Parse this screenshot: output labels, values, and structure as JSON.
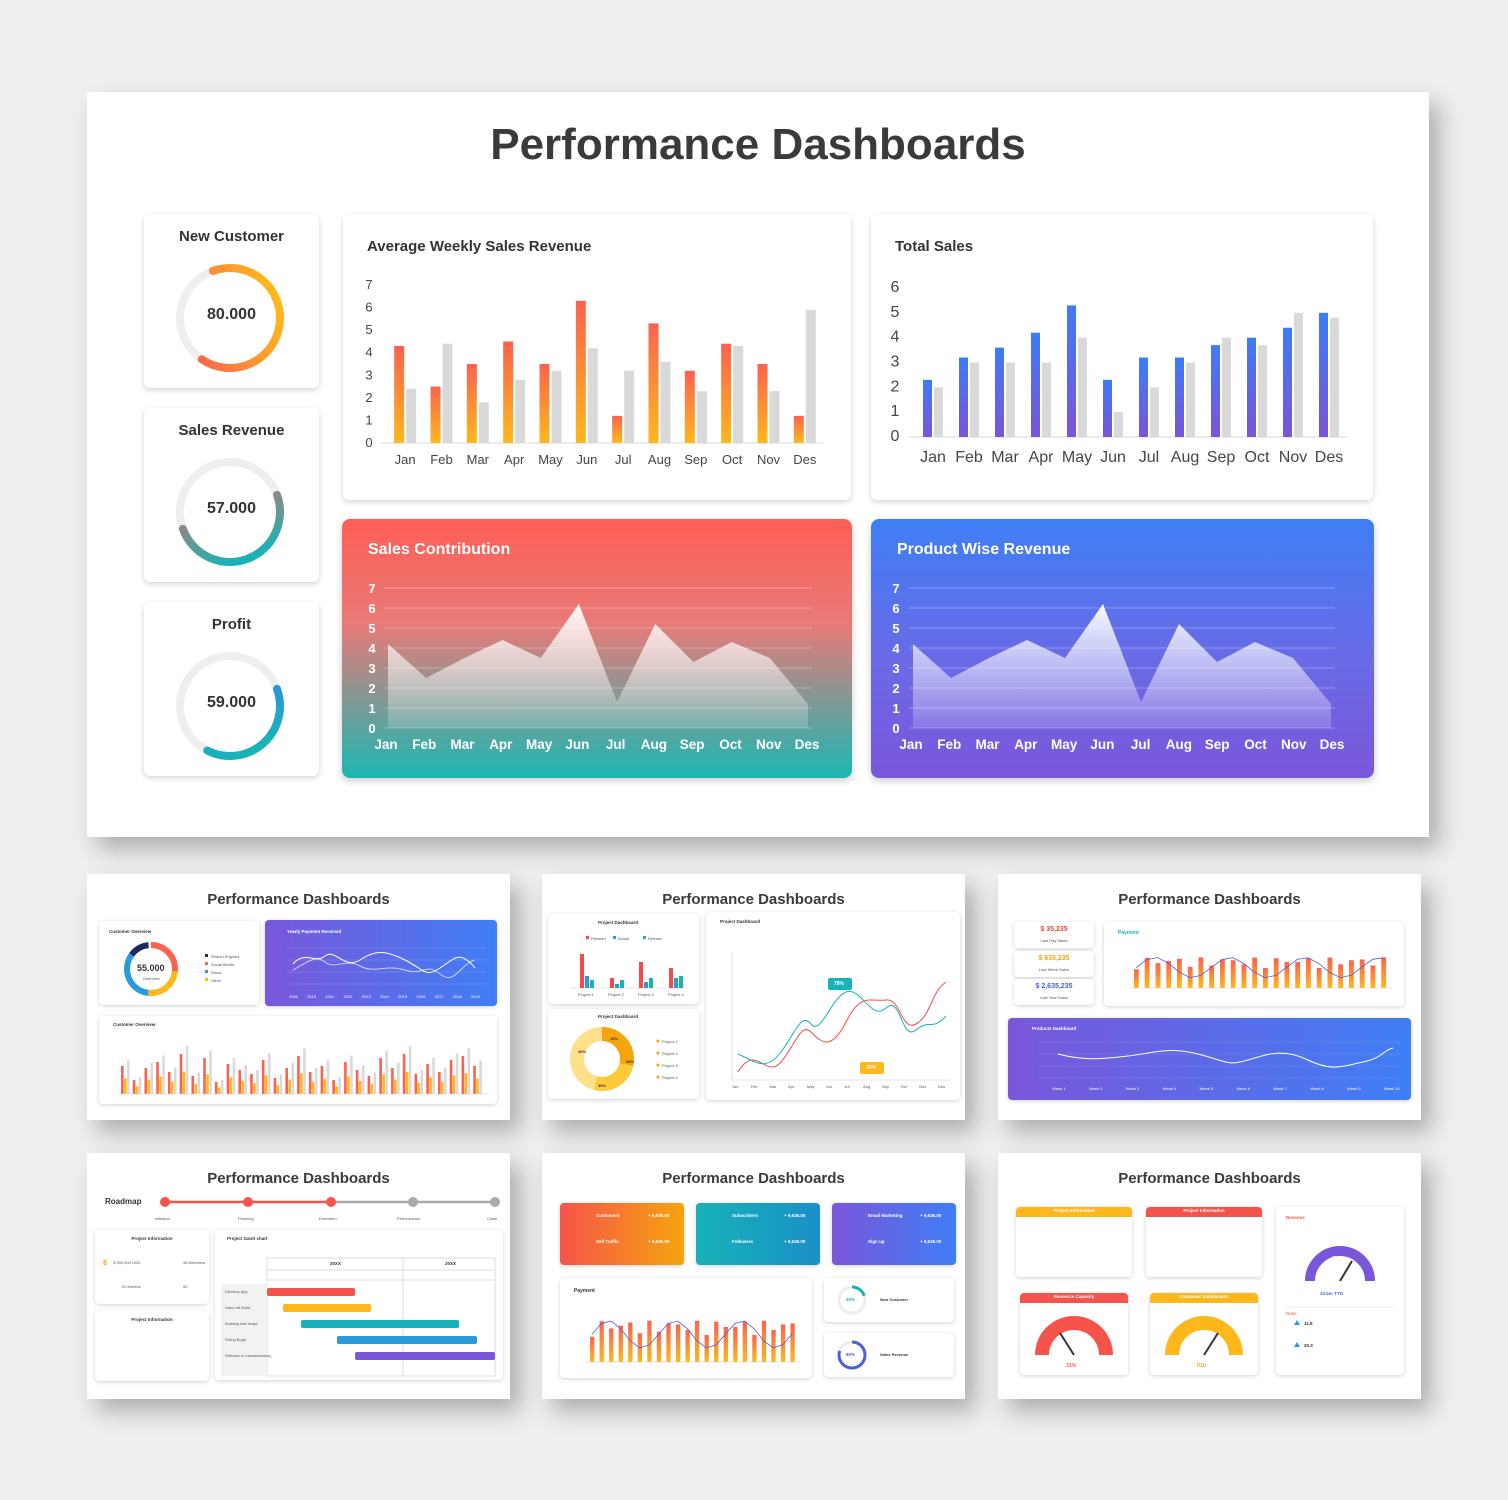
{
  "main": {
    "title": "Performance Dashboards",
    "kpis": [
      {
        "label": "New Customer",
        "value": "80.000",
        "progress": 0.65
      },
      {
        "label": "Sales Revenue",
        "value": "57.000",
        "progress": 0.5
      },
      {
        "label": "Profit",
        "value": "59.000",
        "progress": 0.38
      }
    ],
    "colors": {
      "orange": "#fc6250",
      "yellow": "#ffb81c",
      "blue": "#3d7cf5",
      "purple": "#7a55d8",
      "teal": "#17b3b8",
      "gray": "#d9d9d9"
    }
  },
  "chart_data": [
    {
      "type": "bar",
      "title": "Average Weekly Sales Revenue",
      "categories": [
        "Jan",
        "Feb",
        "Mar",
        "Apr",
        "May",
        "Jun",
        "Jul",
        "Aug",
        "Sep",
        "Oct",
        "Nov",
        "Des"
      ],
      "yticks": [
        "0",
        "1",
        "2",
        "3",
        "4",
        "5",
        "6",
        "7"
      ],
      "ylim": [
        0,
        7
      ],
      "series": [
        {
          "values": [
            4.3,
            2.5,
            3.5,
            4.5,
            3.5,
            6.3,
            1.2,
            5.3,
            3.2,
            4.4,
            3.5,
            1.2
          ]
        },
        {
          "values": [
            2.4,
            4.4,
            1.8,
            2.8,
            3.2,
            4.2,
            3.2,
            3.6,
            2.3,
            4.3,
            2.3,
            5.9
          ]
        }
      ]
    },
    {
      "type": "bar",
      "title": "Total Sales",
      "categories": [
        "Jan",
        "Feb",
        "Mar",
        "Apr",
        "May",
        "Jun",
        "Jul",
        "Aug",
        "Sep",
        "Oct",
        "Nov",
        "Des"
      ],
      "yticks": [
        "0",
        "1",
        "2",
        "3",
        "4",
        "5",
        "6"
      ],
      "ylim": [
        0,
        6
      ],
      "series": [
        {
          "values": [
            2.3,
            3.2,
            3.6,
            4.2,
            5.3,
            2.3,
            3.2,
            3.2,
            3.7,
            4.0,
            4.4,
            5.0
          ]
        },
        {
          "values": [
            2.0,
            3.0,
            3.0,
            3.0,
            4.0,
            1.0,
            2.0,
            3.0,
            4.0,
            3.7,
            5.0,
            4.8
          ]
        }
      ]
    },
    {
      "type": "area",
      "title": "Sales Contribution",
      "categories": [
        "Jan",
        "Feb",
        "Mar",
        "Apr",
        "May",
        "Jun",
        "Jul",
        "Aug",
        "Sep",
        "Oct",
        "Nov",
        "Des"
      ],
      "yticks": [
        "0",
        "1",
        "2",
        "3",
        "4",
        "5",
        "6",
        "7"
      ],
      "ylim": [
        0,
        7
      ],
      "values": [
        4.2,
        2.5,
        3.5,
        4.4,
        3.5,
        6.2,
        1.3,
        5.2,
        3.3,
        4.3,
        3.5,
        1.2
      ]
    },
    {
      "type": "area",
      "title": "Product Wise Revenue",
      "categories": [
        "Jan",
        "Feb",
        "Mar",
        "Apr",
        "May",
        "Jun",
        "Jul",
        "Aug",
        "Sep",
        "Oct",
        "Nov",
        "Des"
      ],
      "yticks": [
        "0",
        "1",
        "2",
        "3",
        "4",
        "5",
        "6",
        "7"
      ],
      "ylim": [
        0,
        7
      ],
      "values": [
        4.2,
        2.5,
        3.5,
        4.4,
        3.5,
        6.2,
        1.3,
        5.2,
        3.3,
        4.3,
        3.5,
        1.2
      ]
    }
  ],
  "thumbs": {
    "title": "Performance Dashboards",
    "t1": {
      "customer_overview": "Customer Overview",
      "donut_value": "55.000",
      "donut_sub": "Overview",
      "legend": [
        "Search Engines",
        "Social Media",
        "Direct",
        "Other"
      ],
      "yearly_title": "Yearly Payment Received",
      "years": [
        "2009",
        "2010",
        "2011",
        "2012",
        "2013",
        "2014",
        "2015",
        "2016",
        "2017",
        "2018",
        "2019"
      ],
      "customer_overview2": "Customer Overview"
    },
    "t2": {
      "project_dashboard": "Project Dashboard",
      "legend": [
        "Planned",
        "Actual",
        "Remain"
      ],
      "projects": [
        "Project 1",
        "Project 2",
        "Project 3",
        "Project 4"
      ],
      "donut_labels": [
        "10%",
        "38%",
        "30%",
        "46%"
      ],
      "label_78": "78%",
      "label_32": "32%",
      "months": [
        "Jan",
        "Feb",
        "Mar",
        "Apr",
        "May",
        "Jun",
        "Jul",
        "Aug",
        "Sep",
        "Oct",
        "Nov",
        "Des"
      ]
    },
    "t3": {
      "stats": [
        {
          "value": "$ 35,235",
          "label": "Last Day Sales",
          "color": "#e8463a"
        },
        {
          "value": "$ 635,235",
          "label": "Last Week Sales",
          "color": "#f5a40e"
        },
        {
          "value": "$ 2,635,235",
          "label": "Last Year Sales",
          "color": "#4a60d8"
        }
      ],
      "payment": "Payment",
      "products": "Products Dashboard",
      "weeks": [
        "Week 1",
        "Week 2",
        "Week 3",
        "Week 4",
        "Week 5",
        "Week 6",
        "Week 7",
        "Week 8",
        "Week 9",
        "Week 10"
      ]
    },
    "t4": {
      "roadmap": "Roadmap",
      "steps": [
        "Initiation",
        "Planning",
        "Execution",
        "Performance",
        "Close"
      ],
      "project_info": "Project Information",
      "gantt_title": "Project Gantt chart",
      "years": [
        "20XX",
        "20XX"
      ],
      "tasks": [
        "Develop App",
        "Hand off Build",
        "Building test script",
        "Fixing Bugs",
        "Release to manufacturing"
      ],
      "budget": "3,250,000 USD",
      "members": "45 Members",
      "months_label": "20 Months",
      "open": "50"
    },
    "t5": {
      "tiles": [
        {
          "a": "Customers",
          "b": "Sell Traffic",
          "value": "+ 9,636.00"
        },
        {
          "a": "Subscribers",
          "b": "Followers",
          "value": "+ 9,636.00"
        },
        {
          "a": "Email Marketing",
          "b": "Sign up",
          "value": "+ 9,636.00"
        }
      ],
      "payment": "Payment",
      "new_customer": "New Customer",
      "sales_revenue": "Sales Revenue",
      "pct_20": "20%",
      "pct_80": "80%"
    },
    "t6": {
      "project_info": "Project Information",
      "revenue": "Revenue",
      "resource_capacity": "Resource Capacity",
      "customer_satisfaction": "Customer Satisfaction",
      "pct_70": "70%",
      "rev_value": "23.5m TYD",
      "res_value": "31%",
      "cs_value": "7/10",
      "ratio": "Ratio",
      "ratio_a": "11.9",
      "ratio_b": "20.3"
    }
  }
}
